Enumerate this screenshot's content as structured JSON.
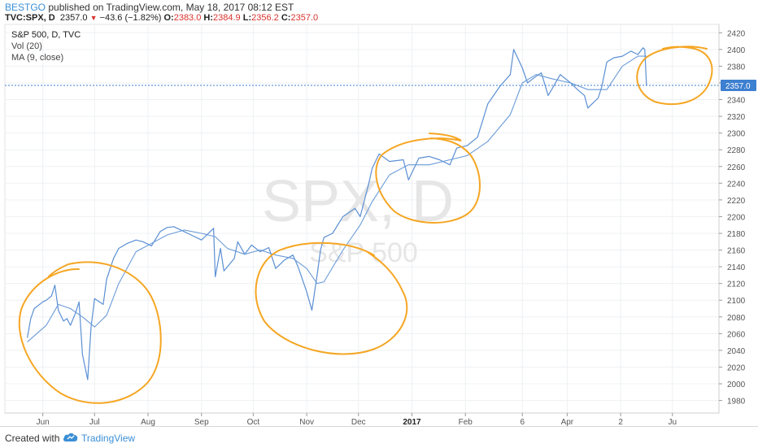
{
  "header": {
    "author": "BESTGO",
    "published_text": "published on TradingView.com, May 18, 2017 08:12 EST",
    "symbol": "TVC:SPX, D",
    "last": "2357.0",
    "change": "−43.6 (−1.82%)",
    "open_label": "O:",
    "open": "2383.0",
    "high_label": "H:",
    "high": "2384.9",
    "low_label": "L:",
    "low": "2356.2",
    "close_label": "C:",
    "close": "2357.0"
  },
  "legend": {
    "title": "S&P 500, D, TVC",
    "vol": "Vol (20)",
    "ma": "MA (9, close)"
  },
  "watermark": {
    "symbol": "SPX, D",
    "name": "S&P 500"
  },
  "footer": {
    "created_with": "Created with",
    "brand": "TradingView"
  },
  "colors": {
    "price": "#5b8fd3",
    "ma": "#5b8fd3",
    "annotation": "#f5a623",
    "last_badge": "#3d7fd0",
    "grid": "#eef0f3"
  },
  "chart_data": {
    "type": "line",
    "title": "S&P 500, D, TVC",
    "ylim": [
      1965,
      2430
    ],
    "y_ticks": [
      1980,
      2000,
      2020,
      2040,
      2060,
      2080,
      2100,
      2120,
      2140,
      2160,
      2180,
      2200,
      2220,
      2240,
      2260,
      2280,
      2300,
      2320,
      2340,
      2360,
      2380,
      2400,
      2420
    ],
    "x_labels": [
      "Jun",
      "Jul",
      "Aug",
      "Sep",
      "Oct",
      "Nov",
      "Dec",
      "2017",
      "Feb",
      "6",
      "Apr",
      "2",
      "Ju"
    ],
    "last_value_label": "2357.0",
    "last_value": 2357.0,
    "series": [
      {
        "type": "price",
        "x": [
          "2016-05-23",
          "2016-05-25",
          "2016-05-27",
          "2016-06-01",
          "2016-06-03",
          "2016-06-06",
          "2016-06-08",
          "2016-06-10",
          "2016-06-13",
          "2016-06-15",
          "2016-06-17",
          "2016-06-20",
          "2016-06-22",
          "2016-06-24",
          "2016-06-27",
          "2016-06-29",
          "2016-07-01",
          "2016-07-06",
          "2016-07-08",
          "2016-07-12",
          "2016-07-15",
          "2016-07-20",
          "2016-07-25",
          "2016-07-29",
          "2016-08-03",
          "2016-08-08",
          "2016-08-12",
          "2016-08-16",
          "2016-08-22",
          "2016-08-26",
          "2016-09-01",
          "2016-09-06",
          "2016-09-08",
          "2016-09-09",
          "2016-09-12",
          "2016-09-14",
          "2016-09-16",
          "2016-09-20",
          "2016-09-22",
          "2016-09-26",
          "2016-09-30",
          "2016-10-05",
          "2016-10-10",
          "2016-10-14",
          "2016-10-19",
          "2016-10-24",
          "2016-10-27",
          "2016-11-01",
          "2016-11-04",
          "2016-11-07",
          "2016-11-09",
          "2016-11-11",
          "2016-11-16",
          "2016-11-22",
          "2016-11-29",
          "2016-12-02",
          "2016-12-07",
          "2016-12-09",
          "2016-12-13",
          "2016-12-19",
          "2016-12-27",
          "2016-12-30",
          "2017-01-05",
          "2017-01-11",
          "2017-01-17",
          "2017-01-23",
          "2017-01-27",
          "2017-02-02",
          "2017-02-08",
          "2017-02-14",
          "2017-02-21",
          "2017-02-27",
          "2017-03-01",
          "2017-03-06",
          "2017-03-09",
          "2017-03-14",
          "2017-03-17",
          "2017-03-21",
          "2017-03-23",
          "2017-03-28",
          "2017-04-03",
          "2017-04-07",
          "2017-04-11",
          "2017-04-13",
          "2017-04-19",
          "2017-04-21",
          "2017-04-24",
          "2017-04-28",
          "2017-05-03",
          "2017-05-08",
          "2017-05-12",
          "2017-05-15",
          "2017-05-16",
          "2017-05-17"
        ],
        "y": [
          2055,
          2078,
          2090,
          2098,
          2100,
          2105,
          2118,
          2088,
          2075,
          2078,
          2070,
          2085,
          2098,
          2035,
          2005,
          2068,
          2102,
          2095,
          2125,
          2150,
          2162,
          2168,
          2172,
          2170,
          2165,
          2182,
          2187,
          2188,
          2182,
          2178,
          2172,
          2182,
          2186,
          2128,
          2162,
          2135,
          2140,
          2150,
          2170,
          2155,
          2166,
          2158,
          2163,
          2138,
          2148,
          2154,
          2140,
          2110,
          2088,
          2130,
          2160,
          2175,
          2180,
          2200,
          2210,
          2200,
          2240,
          2258,
          2275,
          2266,
          2268,
          2244,
          2270,
          2272,
          2268,
          2262,
          2282,
          2285,
          2295,
          2335,
          2356,
          2370,
          2400,
          2378,
          2360,
          2368,
          2372,
          2345,
          2352,
          2370,
          2360,
          2352,
          2345,
          2330,
          2342,
          2355,
          2385,
          2390,
          2392,
          2398,
          2394,
          2402,
          2400,
          2357
        ]
      },
      {
        "type": "ma",
        "name": "MA (9, close)",
        "x": [
          "2016-05-23",
          "2016-06-03",
          "2016-06-10",
          "2016-06-17",
          "2016-06-24",
          "2016-07-01",
          "2016-07-08",
          "2016-07-15",
          "2016-07-25",
          "2016-08-03",
          "2016-08-12",
          "2016-08-22",
          "2016-09-01",
          "2016-09-09",
          "2016-09-16",
          "2016-09-26",
          "2016-10-05",
          "2016-10-14",
          "2016-10-24",
          "2016-11-01",
          "2016-11-07",
          "2016-11-11",
          "2016-11-22",
          "2016-12-02",
          "2016-12-09",
          "2016-12-19",
          "2016-12-30",
          "2017-01-11",
          "2017-01-23",
          "2017-02-02",
          "2017-02-14",
          "2017-02-27",
          "2017-03-06",
          "2017-03-14",
          "2017-03-23",
          "2017-04-03",
          "2017-04-13",
          "2017-04-24",
          "2017-05-03",
          "2017-05-12",
          "2017-05-17"
        ],
        "y": [
          2050,
          2070,
          2095,
          2090,
          2080,
          2068,
          2082,
          2120,
          2158,
          2168,
          2178,
          2184,
          2180,
          2176,
          2162,
          2155,
          2160,
          2154,
          2150,
          2138,
          2120,
          2122,
          2160,
          2190,
          2218,
          2250,
          2262,
          2262,
          2268,
          2273,
          2290,
          2322,
          2360,
          2370,
          2365,
          2360,
          2352,
          2352,
          2380,
          2392,
          2392
        ]
      }
    ]
  }
}
